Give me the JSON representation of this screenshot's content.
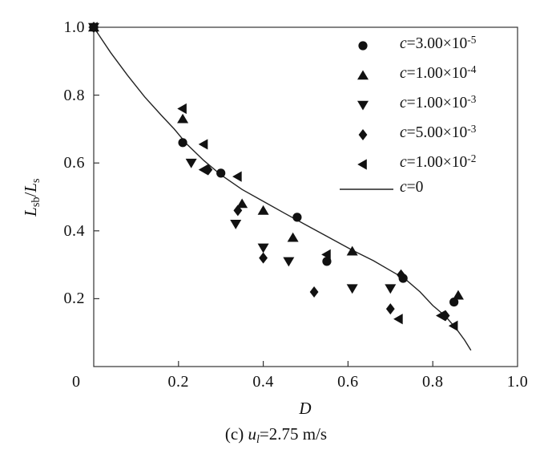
{
  "figure": {
    "xlabel": "D",
    "ylabel": {
      "base1": "L",
      "sub1": "sb",
      "sep": "/",
      "base2": "L",
      "sub2": "s"
    },
    "caption": {
      "prefix": "(c) ",
      "var": "u",
      "sub": "l",
      "rest": "=2.75 m/s"
    }
  },
  "legend": {
    "items": [
      {
        "symbol": "circle",
        "var": "c",
        "eq": "=3.00×10",
        "exp": "-5"
      },
      {
        "symbol": "triangle-up",
        "var": "c",
        "eq": "=1.00×10",
        "exp": "-4"
      },
      {
        "symbol": "triangle-down",
        "var": "c",
        "eq": "=1.00×10",
        "exp": "-3"
      },
      {
        "symbol": "diamond",
        "var": "c",
        "eq": "=5.00×10",
        "exp": "-3"
      },
      {
        "symbol": "triangle-left",
        "var": "c",
        "eq": "=1.00×10",
        "exp": "-2"
      },
      {
        "symbol": "line",
        "var": "c",
        "eq": "=0",
        "exp": ""
      }
    ]
  },
  "chart_data": {
    "type": "scatter",
    "title": "",
    "xlabel": "D",
    "ylabel": "Lsb/Ls",
    "xlim": [
      0,
      1.0
    ],
    "ylim": [
      0,
      1.0
    ],
    "grid": false,
    "legend_position": "upper right inside",
    "x_ticks": [
      0.2,
      0.4,
      0.6,
      0.8,
      1.0
    ],
    "x_tick_labels": [
      "0.2",
      "0.4",
      "0.6",
      "0.8",
      "1.0"
    ],
    "y_ticks": [
      0.2,
      0.4,
      0.6,
      0.8,
      1.0
    ],
    "y_tick_labels": [
      "0.2",
      "0.4",
      "0.6",
      "0.8",
      "1.0"
    ],
    "origin_label": "0",
    "marker_color": "#111111",
    "line_color": "#222222",
    "series": [
      {
        "name": "c=3.00×10^-5",
        "symbol": "circle",
        "points": [
          [
            0,
            1.0
          ],
          [
            0.21,
            0.66
          ],
          [
            0.3,
            0.57
          ],
          [
            0.48,
            0.44
          ],
          [
            0.55,
            0.31
          ],
          [
            0.73,
            0.26
          ],
          [
            0.85,
            0.19
          ]
        ]
      },
      {
        "name": "c=1.00×10^-4",
        "symbol": "triangle-up",
        "points": [
          [
            0,
            1.0
          ],
          [
            0.21,
            0.73
          ],
          [
            0.35,
            0.48
          ],
          [
            0.4,
            0.46
          ],
          [
            0.47,
            0.38
          ],
          [
            0.61,
            0.34
          ],
          [
            0.86,
            0.21
          ]
        ]
      },
      {
        "name": "c=1.00×10^-3",
        "symbol": "triangle-down",
        "points": [
          [
            0,
            1.0
          ],
          [
            0.23,
            0.6
          ],
          [
            0.335,
            0.42
          ],
          [
            0.4,
            0.35
          ],
          [
            0.46,
            0.31
          ],
          [
            0.61,
            0.23
          ],
          [
            0.7,
            0.23
          ]
        ]
      },
      {
        "name": "c=5.00×10^-3",
        "symbol": "diamond",
        "points": [
          [
            0,
            1.0
          ],
          [
            0.27,
            0.58
          ],
          [
            0.34,
            0.46
          ],
          [
            0.4,
            0.32
          ],
          [
            0.52,
            0.22
          ],
          [
            0.7,
            0.17
          ],
          [
            0.725,
            0.27
          ],
          [
            0.83,
            0.15
          ]
        ]
      },
      {
        "name": "c=1.00×10^-2",
        "symbol": "triangle-left",
        "points": [
          [
            0,
            1.0
          ],
          [
            0.21,
            0.76
          ],
          [
            0.26,
            0.655
          ],
          [
            0.26,
            0.58
          ],
          [
            0.34,
            0.56
          ],
          [
            0.55,
            0.33
          ],
          [
            0.72,
            0.14
          ],
          [
            0.82,
            0.15
          ],
          [
            0.85,
            0.12
          ]
        ]
      }
    ],
    "line_series": {
      "name": "c=0",
      "points": [
        [
          0,
          1.0
        ],
        [
          0.04,
          0.925
        ],
        [
          0.08,
          0.858
        ],
        [
          0.12,
          0.795
        ],
        [
          0.16,
          0.74
        ],
        [
          0.19,
          0.7
        ],
        [
          0.22,
          0.655
        ],
        [
          0.26,
          0.607
        ],
        [
          0.3,
          0.565
        ],
        [
          0.35,
          0.522
        ],
        [
          0.4,
          0.487
        ],
        [
          0.45,
          0.452
        ],
        [
          0.5,
          0.418
        ],
        [
          0.55,
          0.384
        ],
        [
          0.61,
          0.343
        ],
        [
          0.66,
          0.312
        ],
        [
          0.7,
          0.283
        ],
        [
          0.735,
          0.258
        ],
        [
          0.77,
          0.22
        ],
        [
          0.8,
          0.18
        ],
        [
          0.83,
          0.148
        ],
        [
          0.855,
          0.112
        ],
        [
          0.875,
          0.078
        ],
        [
          0.89,
          0.048
        ]
      ]
    }
  }
}
